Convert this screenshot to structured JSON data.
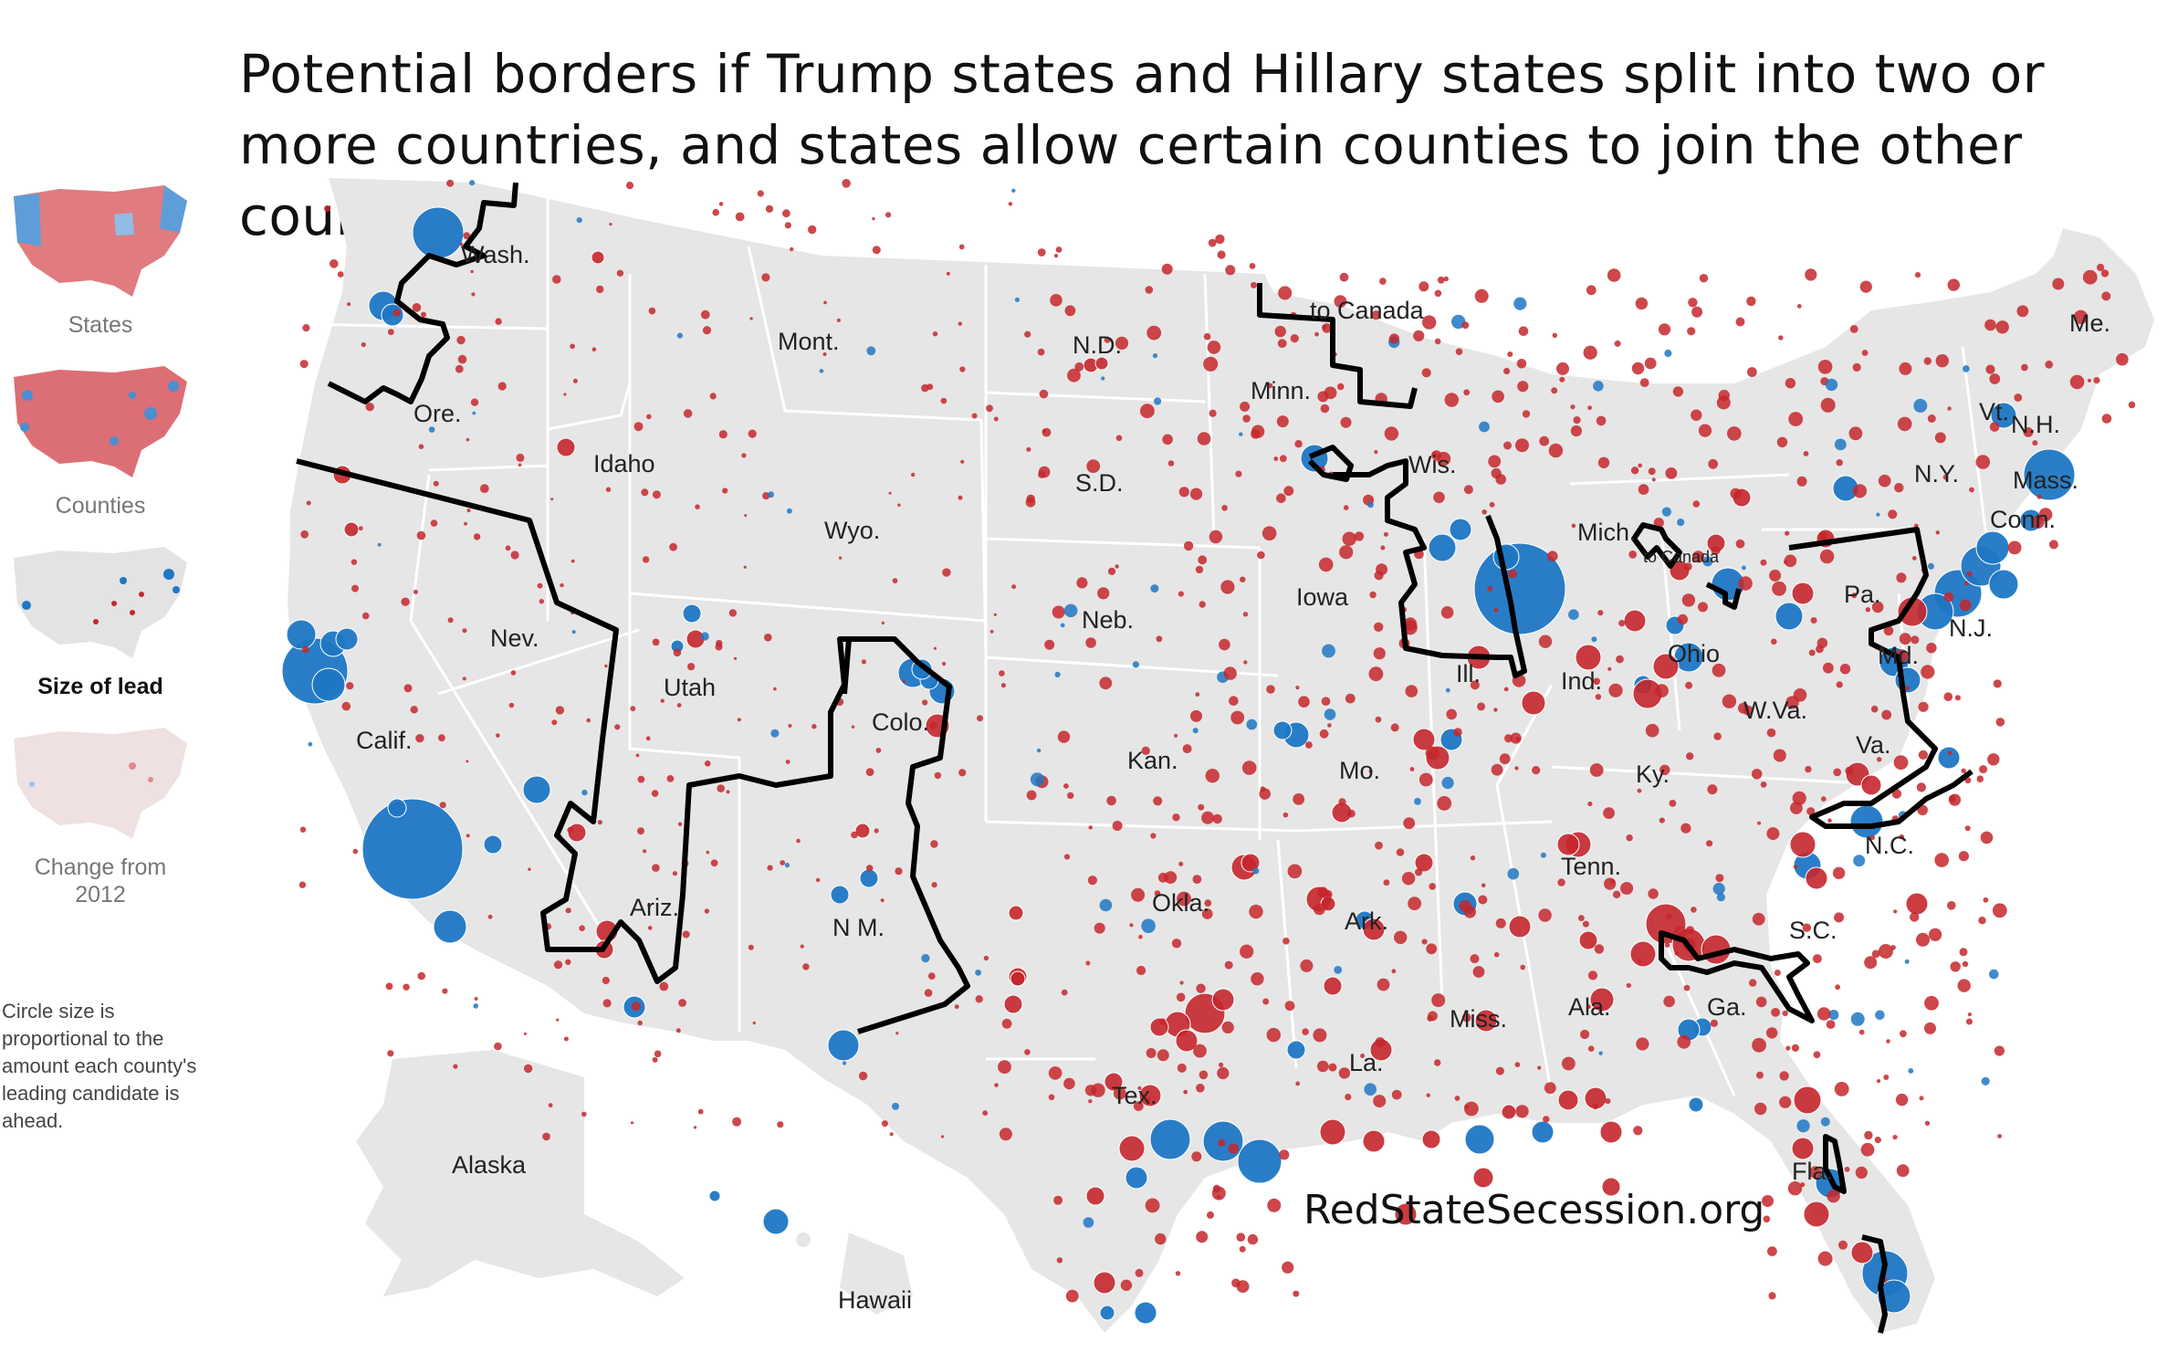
{
  "title": "Potential borders if Trump states and Hillary states split into two or more countries, and states allow certain counties to join the other country",
  "legend": {
    "items": [
      {
        "label": "States",
        "active": false,
        "icon": "states-map-thumbnail"
      },
      {
        "label": "Counties",
        "active": false,
        "icon": "counties-map-thumbnail"
      },
      {
        "label": "Size of lead",
        "active": true,
        "icon": "size-of-lead-map-thumbnail"
      },
      {
        "label": "Change from 2012",
        "active": false,
        "icon": "change-map-thumbnail"
      }
    ],
    "note": "Circle size is proportional to the amount each county's leading candidate is ahead."
  },
  "map": {
    "colors": {
      "land": "#e6e6e6",
      "border": "#ffffff",
      "democrat": "#1f77c4",
      "republican": "#c4272c",
      "split_line": "#000000"
    },
    "state_labels": [
      "Wash.",
      "Ore.",
      "Calif.",
      "Nev.",
      "Idaho",
      "Mont.",
      "Wyo.",
      "Utah",
      "Ariz.",
      "Colo.",
      "N M.",
      "N.D.",
      "S.D.",
      "Neb.",
      "Kan.",
      "Okla.",
      "Tex.",
      "Minn.",
      "Iowa",
      "Mo.",
      "Ark.",
      "La.",
      "Wis.",
      "Ill.",
      "Mich.",
      "Ind.",
      "Ohio",
      "Ky.",
      "Tenn.",
      "Miss.",
      "Ala.",
      "Ga.",
      "Fla.",
      "S.C.",
      "N.C.",
      "Va.",
      "W.Va.",
      "Pa.",
      "Md.",
      "N.J.",
      "N.Y.",
      "Conn.",
      "Mass.",
      "Vt.",
      "N.H.",
      "Me.",
      "Alaska",
      "Hawaii"
    ],
    "annotations": [
      "to Canada",
      "to Canada"
    ]
  },
  "watermark": "RedStateSecession.org"
}
